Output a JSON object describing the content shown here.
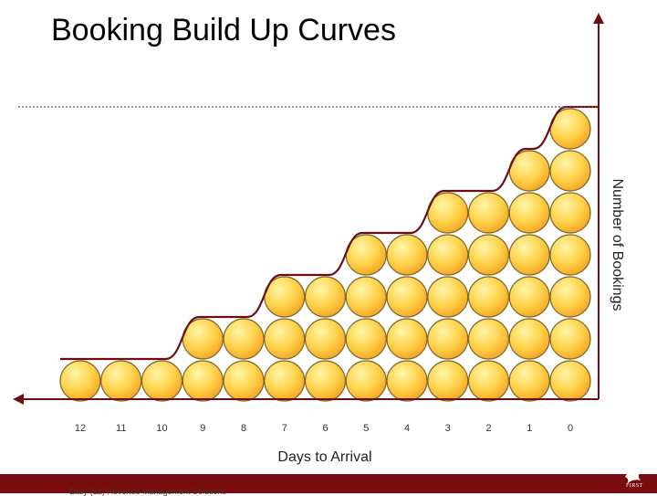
{
  "page": {
    "title": "Booking Build Up Curves",
    "footer_text": "Easy (Ez) Revenue Management Solutions",
    "logo_text": "FIRST"
  },
  "colors": {
    "axis": "#6b0d12",
    "footer_bar": "#7a0b0f",
    "bubble_light": "#fff6a8",
    "bubble_mid": "#ffd24a",
    "bubble_dark": "#f2a020",
    "bubble_edge": "#7d6a2e",
    "dotted_line": "#555555"
  },
  "chart_data": {
    "type": "bar",
    "title": "Booking Build Up Curves",
    "xlabel": "Days to Arrival",
    "ylabel": "Number of Bookings",
    "categories": [
      "12",
      "11",
      "10",
      "9",
      "8",
      "7",
      "6",
      "5",
      "4",
      "3",
      "2",
      "1",
      "0"
    ],
    "values": [
      1,
      1,
      1,
      2,
      2,
      3,
      3,
      4,
      4,
      5,
      5,
      6,
      7
    ],
    "ylim": [
      0,
      7
    ],
    "capacity_line": 7,
    "grid": false,
    "legend": "none",
    "marker": "circle-stack"
  }
}
